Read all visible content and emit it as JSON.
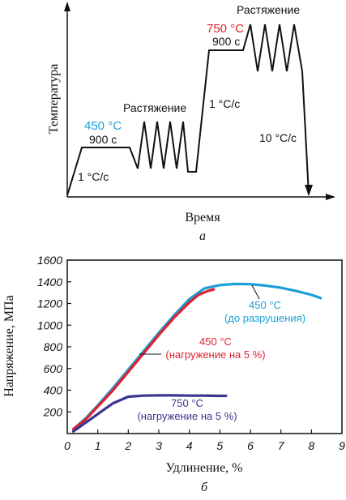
{
  "colors": {
    "cyan": "#1b9fd8",
    "red": "#e0202e",
    "navy": "#3a3591",
    "ink": "#111111"
  },
  "chart_data": [
    {
      "type": "line",
      "panel_label": "a",
      "xlabel": "Время",
      "ylabel": "Температура",
      "annotations": {
        "temp_450": "450 °C",
        "hold_450": "900 c",
        "stretch_1": "Растяжение",
        "rate_heat_1": "1 °C/c",
        "temp_750": "750 °C",
        "hold_750": "900 c",
        "stretch_2": "Растяжение",
        "rate_heat_2": "1 °C/c",
        "rate_cool": "10 °C/c"
      }
    },
    {
      "type": "line",
      "panel_label": "б",
      "xlabel": "Удлинение, %",
      "ylabel": "Напряжение, МПа",
      "xlim": [
        0,
        9
      ],
      "ylim": [
        0,
        1600
      ],
      "x_ticks": [
        "0",
        "1",
        "2",
        "3",
        "4",
        "5",
        "6",
        "7",
        "8",
        "9"
      ],
      "y_ticks": [
        "200",
        "400",
        "600",
        "800",
        "1000",
        "1200",
        "1400",
        "1600"
      ],
      "series": [
        {
          "name": "450 °C (до разрушения)",
          "label_line1": "450 °C",
          "label_line2": "(до разрушения)",
          "color": "#1b9fd8",
          "x": [
            0.2,
            0.6,
            1.0,
            1.5,
            2.0,
            2.5,
            3.0,
            3.5,
            4.0,
            4.5,
            5.0,
            5.5,
            6.0,
            6.5,
            7.0,
            7.5,
            8.0,
            8.3
          ],
          "y": [
            40,
            140,
            260,
            420,
            590,
            760,
            930,
            1090,
            1240,
            1340,
            1370,
            1380,
            1378,
            1365,
            1345,
            1315,
            1280,
            1250
          ]
        },
        {
          "name": "450 °C (нагружение на 5 %)",
          "label_line1": "450 °C",
          "label_line2": "(нагружение на 5 %)",
          "color": "#e0202e",
          "x": [
            0.2,
            0.6,
            1.0,
            1.5,
            2.0,
            2.5,
            3.0,
            3.5,
            4.0,
            4.3,
            4.6,
            4.8
          ],
          "y": [
            40,
            130,
            250,
            400,
            570,
            740,
            910,
            1070,
            1210,
            1280,
            1315,
            1330
          ]
        },
        {
          "name": "750 °C (нагружение на 5 %)",
          "label_line1": "750 °C",
          "label_line2": "(нагружение на 5 %)",
          "color": "#3a3591",
          "x": [
            0.2,
            0.5,
            1.0,
            1.5,
            2.0,
            2.5,
            3.0,
            3.5,
            4.0,
            4.5,
            5.0,
            5.2
          ],
          "y": [
            20,
            80,
            180,
            280,
            340,
            350,
            352,
            352,
            350,
            350,
            348,
            348
          ]
        }
      ]
    }
  ]
}
